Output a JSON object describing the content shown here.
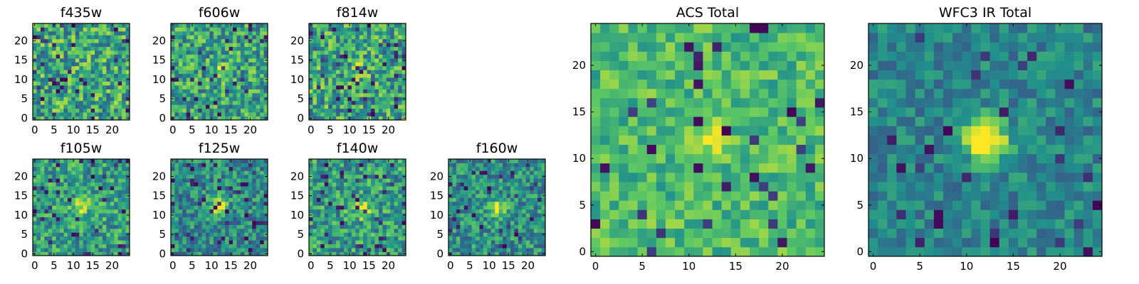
{
  "figure": {
    "colormap": "viridis",
    "colormap_stops": [
      "#440154",
      "#3b528b",
      "#21918c",
      "#5ec962",
      "#fde725"
    ],
    "grid": false,
    "legend": "none"
  },
  "chart_data": [
    {
      "type": "heatmap",
      "title": "f435w",
      "size": [
        25,
        25
      ],
      "xlim": [
        -0.5,
        24.5
      ],
      "ylim": [
        -0.5,
        24.5
      ],
      "x_ticks": [
        0,
        5,
        10,
        15,
        20
      ],
      "y_ticks": [
        0,
        5,
        10,
        15,
        20
      ],
      "pattern": "uniform noise, no central source",
      "center": [
        12,
        12
      ],
      "source_amplitude": 0.0,
      "source_sigma": 1.6,
      "noise_level": 0.6,
      "background_level": 0.6,
      "low_outlier_fraction": 0.06,
      "seed": 11
    },
    {
      "type": "heatmap",
      "title": "f606w",
      "size": [
        25,
        25
      ],
      "xlim": [
        -0.5,
        24.5
      ],
      "ylim": [
        -0.5,
        24.5
      ],
      "x_ticks": [
        0,
        5,
        10,
        15,
        20
      ],
      "y_ticks": [
        0,
        5,
        10,
        15,
        20
      ],
      "pattern": "noise with a faint central source",
      "center": [
        12,
        12
      ],
      "source_amplitude": 0.25,
      "source_sigma": 1.6,
      "noise_level": 0.55,
      "background_level": 0.58,
      "low_outlier_fraction": 0.05,
      "seed": 23
    },
    {
      "type": "heatmap",
      "title": "f814w",
      "size": [
        25,
        25
      ],
      "xlim": [
        -0.5,
        24.5
      ],
      "ylim": [
        -0.5,
        24.5
      ],
      "x_ticks": [
        0,
        5,
        10,
        15,
        20
      ],
      "y_ticks": [
        0,
        5,
        10,
        15,
        20
      ],
      "pattern": "noise with a faint central source",
      "center": [
        12,
        12
      ],
      "source_amplitude": 0.2,
      "source_sigma": 1.6,
      "noise_level": 0.6,
      "background_level": 0.58,
      "low_outlier_fraction": 0.07,
      "seed": 37
    },
    {
      "type": "heatmap",
      "title": "f105w",
      "size": [
        25,
        25
      ],
      "xlim": [
        -0.5,
        24.5
      ],
      "ylim": [
        -0.5,
        24.5
      ],
      "x_ticks": [
        0,
        5,
        10,
        15,
        20
      ],
      "y_ticks": [
        0,
        5,
        10,
        15,
        20
      ],
      "pattern": "correlated noise with a central source",
      "center": [
        12,
        12
      ],
      "source_amplitude": 0.4,
      "source_sigma": 1.7,
      "noise_level": 0.5,
      "background_level": 0.55,
      "low_outlier_fraction": 0.05,
      "seed": 41
    },
    {
      "type": "heatmap",
      "title": "f125w",
      "size": [
        25,
        25
      ],
      "xlim": [
        -0.5,
        24.5
      ],
      "ylim": [
        -0.5,
        24.5
      ],
      "x_ticks": [
        0,
        5,
        10,
        15,
        20
      ],
      "y_ticks": [
        0,
        5,
        10,
        15,
        20
      ],
      "pattern": "noise with a bright central source",
      "center": [
        12,
        12
      ],
      "source_amplitude": 0.7,
      "source_sigma": 1.5,
      "noise_level": 0.45,
      "background_level": 0.48,
      "low_outlier_fraction": 0.07,
      "seed": 53
    },
    {
      "type": "heatmap",
      "title": "f140w",
      "size": [
        25,
        25
      ],
      "xlim": [
        -0.5,
        24.5
      ],
      "ylim": [
        -0.5,
        24.5
      ],
      "x_ticks": [
        0,
        5,
        10,
        15,
        20
      ],
      "y_ticks": [
        0,
        5,
        10,
        15,
        20
      ],
      "pattern": "correlated noise with a central source",
      "center": [
        13,
        12
      ],
      "source_amplitude": 0.4,
      "source_sigma": 1.8,
      "noise_level": 0.5,
      "background_level": 0.55,
      "low_outlier_fraction": 0.06,
      "seed": 67
    },
    {
      "type": "heatmap",
      "title": "f160w",
      "size": [
        25,
        25
      ],
      "xlim": [
        -0.5,
        24.5
      ],
      "ylim": [
        -0.5,
        24.5
      ],
      "x_ticks": [
        0,
        5,
        10,
        15,
        20
      ],
      "y_ticks": [
        0,
        5,
        10,
        15,
        20
      ],
      "pattern": "noise with a central source",
      "center": [
        12,
        12
      ],
      "source_amplitude": 0.55,
      "source_sigma": 1.4,
      "noise_level": 0.45,
      "background_level": 0.5,
      "low_outlier_fraction": 0.06,
      "seed": 79
    },
    {
      "type": "heatmap",
      "title": "ACS Total",
      "size": [
        25,
        25
      ],
      "xlim": [
        -0.5,
        24.5
      ],
      "ylim": [
        -0.5,
        24.5
      ],
      "x_ticks": [
        0,
        5,
        10,
        15,
        20
      ],
      "y_ticks": [
        0,
        5,
        10,
        15,
        20
      ],
      "pattern": "noise with a faint central source",
      "center": [
        12,
        12
      ],
      "source_amplitude": 0.3,
      "source_sigma": 1.5,
      "noise_level": 0.35,
      "background_level": 0.68,
      "low_outlier_fraction": 0.05,
      "seed": 97
    },
    {
      "type": "heatmap",
      "title": "WFC3 IR Total",
      "size": [
        25,
        25
      ],
      "xlim": [
        -0.5,
        24.5
      ],
      "ylim": [
        -0.5,
        24.5
      ],
      "x_ticks": [
        0,
        5,
        10,
        15,
        20
      ],
      "y_ticks": [
        0,
        5,
        10,
        15,
        20
      ],
      "pattern": "noise with a bright central source",
      "center": [
        12,
        12
      ],
      "source_amplitude": 0.8,
      "source_sigma": 1.5,
      "noise_level": 0.3,
      "background_level": 0.45,
      "low_outlier_fraction": 0.05,
      "seed": 113
    }
  ]
}
